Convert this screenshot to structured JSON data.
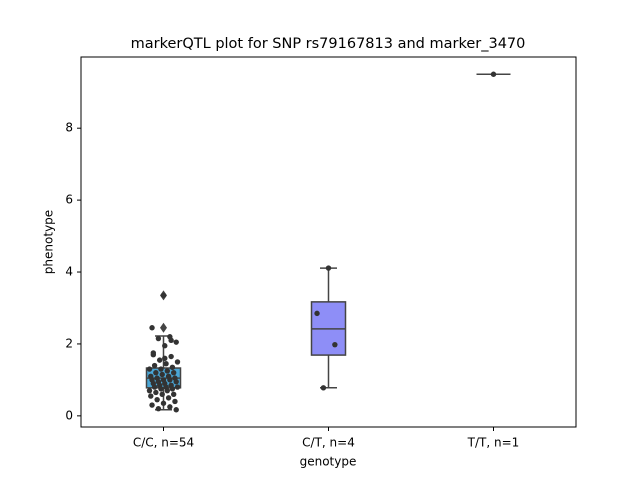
{
  "chart_data": {
    "type": "box",
    "title": "markerQTL plot for SNP rs79167813 and marker_3470",
    "xlabel": "genotype",
    "ylabel": "phenotype",
    "categories": [
      "C/C, n=54",
      "C/T, n=4",
      "T/T, n=1"
    ],
    "boxes": [
      {
        "whislo": 0.17,
        "q1": 0.78,
        "med": 1.05,
        "q3": 1.33,
        "whishi": 2.22,
        "fliers": [
          2.45,
          3.35
        ],
        "color": "#4aa6d6"
      },
      {
        "whislo": 0.78,
        "q1": 1.69,
        "med": 2.42,
        "q3": 3.17,
        "whishi": 4.11,
        "fliers": [],
        "color": "#8e8ef7"
      },
      {
        "whislo": 9.5,
        "q1": 9.5,
        "med": 9.5,
        "q3": 9.5,
        "whishi": 9.5,
        "fliers": [],
        "color": "#e0a0e0"
      }
    ],
    "points": [
      [
        3.35,
        2.45,
        2.2,
        2.15,
        2.05,
        1.95,
        1.7,
        1.65,
        1.55,
        1.5,
        1.45,
        1.4,
        1.35,
        1.3,
        1.3,
        1.25,
        1.2,
        1.2,
        1.15,
        1.1,
        1.1,
        1.05,
        1.05,
        1.0,
        1.0,
        1.0,
        0.95,
        0.95,
        0.9,
        0.9,
        0.85,
        0.85,
        0.8,
        0.8,
        0.8,
        0.75,
        0.75,
        0.7,
        0.7,
        0.65,
        0.6,
        0.6,
        0.55,
        0.5,
        0.45,
        0.4,
        0.35,
        0.3,
        0.25,
        0.2,
        0.17,
        1.6,
        1.75,
        2.1
      ],
      [
        4.11,
        2.85,
        1.98,
        0.78
      ],
      [
        9.5
      ]
    ],
    "point_color": "#333333",
    "ylim": [
      -0.31,
      9.98
    ],
    "yticks": [
      0,
      2,
      4,
      6,
      8
    ]
  }
}
